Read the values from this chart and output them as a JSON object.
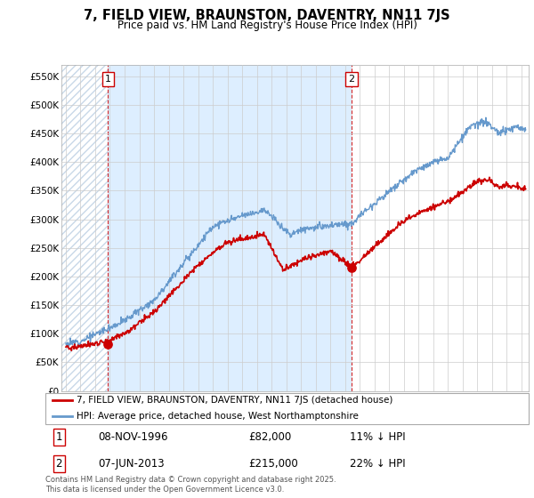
{
  "title": "7, FIELD VIEW, BRAUNSTON, DAVENTRY, NN11 7JS",
  "subtitle": "Price paid vs. HM Land Registry's House Price Index (HPI)",
  "sale1_date": 1996.86,
  "sale1_price": 82000,
  "sale1_label": "1",
  "sale2_date": 2013.44,
  "sale2_price": 215000,
  "sale2_label": "2",
  "red_color": "#cc0000",
  "blue_color": "#6699cc",
  "blue_fill_color": "#ddeeff",
  "background_color": "#ffffff",
  "grid_color": "#cccccc",
  "hatch_edgecolor": "#c8d8e8",
  "ylim": [
    0,
    570000
  ],
  "xlim_start": 1993.7,
  "xlim_end": 2025.5,
  "legend_label_red": "7, FIELD VIEW, BRAUNSTON, DAVENTRY, NN11 7JS (detached house)",
  "legend_label_blue": "HPI: Average price, detached house, West Northamptonshire",
  "footnote": "Contains HM Land Registry data © Crown copyright and database right 2025.\nThis data is licensed under the Open Government Licence v3.0.",
  "yticks": [
    0,
    50000,
    100000,
    150000,
    200000,
    250000,
    300000,
    350000,
    400000,
    450000,
    500000,
    550000
  ],
  "ytick_labels": [
    "£0",
    "£50K",
    "£100K",
    "£150K",
    "£200K",
    "£250K",
    "£300K",
    "£350K",
    "£400K",
    "£450K",
    "£500K",
    "£550K"
  ]
}
